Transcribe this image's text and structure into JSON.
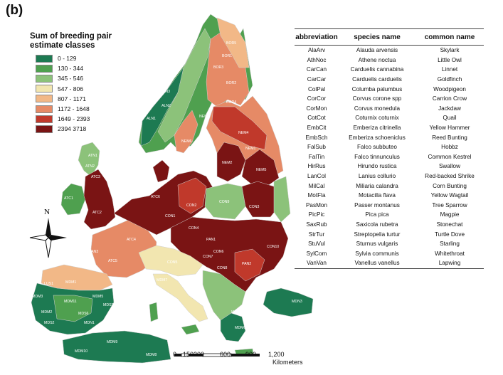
{
  "panel_label": "(b)",
  "legend": {
    "title": "Sum of breeding pair estimate classes",
    "classes": [
      {
        "label": "0 - 129",
        "color": "#1d7a52"
      },
      {
        "label": "130 - 344",
        "color": "#4fa04f"
      },
      {
        "label": "345 - 546",
        "color": "#8cc27a"
      },
      {
        "label": "547 - 806",
        "color": "#f2e6b0"
      },
      {
        "label": "807 - 1171",
        "color": "#f2b887"
      },
      {
        "label": "1172 - 1648",
        "color": "#e68a66"
      },
      {
        "label": "1649 - 2393",
        "color": "#c0392b"
      },
      {
        "label": "2394   3718",
        "color": "#7a1414"
      }
    ]
  },
  "table": {
    "headers": [
      "abbreviation",
      "species name",
      "common name"
    ],
    "rows": [
      [
        "AlaArv",
        "Alauda arvensis",
        "Skylark"
      ],
      [
        "AthNoc",
        "Athene noctua",
        "Little Owl"
      ],
      [
        "CarCan",
        "Carduelis cannabina",
        "Linnet"
      ],
      [
        "CarCar",
        "Carduelis carduelis",
        "Goldfinch"
      ],
      [
        "ColPal",
        "Columba palumbus",
        "Woodpigeon"
      ],
      [
        "CorCor",
        "Corvus corone spp",
        "Carrion Crow"
      ],
      [
        "CorMon",
        "Corvus monedula",
        "Jackdaw"
      ],
      [
        "CotCot",
        "Coturnix coturnix",
        "Quail"
      ],
      [
        "EmbCit",
        "Emberiza citrinella",
        "Yellow Hammer"
      ],
      [
        "EmbSch",
        "Emberiza schoeniclus",
        "Reed Bunting"
      ],
      [
        "FalSub",
        "Falco subbuteo",
        "Hobbz"
      ],
      [
        "FalTin",
        "Falco tinnunculus",
        "Common Kestrel"
      ],
      [
        "HirRus",
        "Hirundo rustica",
        "Swallow"
      ],
      [
        "LanCol",
        "Lanius collurio",
        "Red-backed Shrike"
      ],
      [
        "MilCal",
        "Miliaria calandra",
        "Corn Bunting"
      ],
      [
        "MotFla",
        "Motacilla flava",
        "Yellow Wagtail"
      ],
      [
        "PasMon",
        "Passer montanus",
        "Tree Sparrow"
      ],
      [
        "PicPic",
        "Pica pica",
        "Magpie"
      ],
      [
        "SaxRub",
        "Saxicola rubetra",
        "Stonechat"
      ],
      [
        "StrTur",
        "Streptopelia turtur",
        "Turtle Dove"
      ],
      [
        "StuVul",
        "Sturnus vulgaris",
        "Starling"
      ],
      [
        "SylCom",
        "Sylvia communis",
        "Whitethroat"
      ],
      [
        "VanVan",
        "Vanellus vanellus",
        "Lapwing"
      ]
    ]
  },
  "north_arrow_label": "N",
  "scale_bar": {
    "ticks": [
      "0",
      "150",
      "300",
      "600",
      "900",
      "1,200"
    ],
    "unit": "Kilometers"
  },
  "region_labels": [
    "ALN1",
    "ALN2",
    "ALN3",
    "BOR1",
    "BOR2",
    "BOR3",
    "BOR4",
    "BOR5",
    "NEM1",
    "NEM2",
    "NEM3",
    "NEM4",
    "NEM5",
    "NEM6",
    "ATN1",
    "ATN2",
    "ATC1",
    "ATC2",
    "ATC3",
    "ATC4",
    "ATC5",
    "ATC6",
    "CON1",
    "CON2",
    "CON3",
    "CON4",
    "CON5",
    "CON6",
    "CON7",
    "CON8",
    "CON9",
    "CON10",
    "PAN1",
    "PAN2",
    "PAN3",
    "LUS1",
    "MDM1",
    "MDM2",
    "MDM3",
    "MDM5",
    "MDM6",
    "MDM7",
    "MDM8",
    "MDM9",
    "MDM10",
    "MDM11",
    "MDS1",
    "MDS2",
    "MDS3",
    "MDS5",
    "MDS6",
    "MDN1",
    "MDN3",
    "ANA1"
  ]
}
